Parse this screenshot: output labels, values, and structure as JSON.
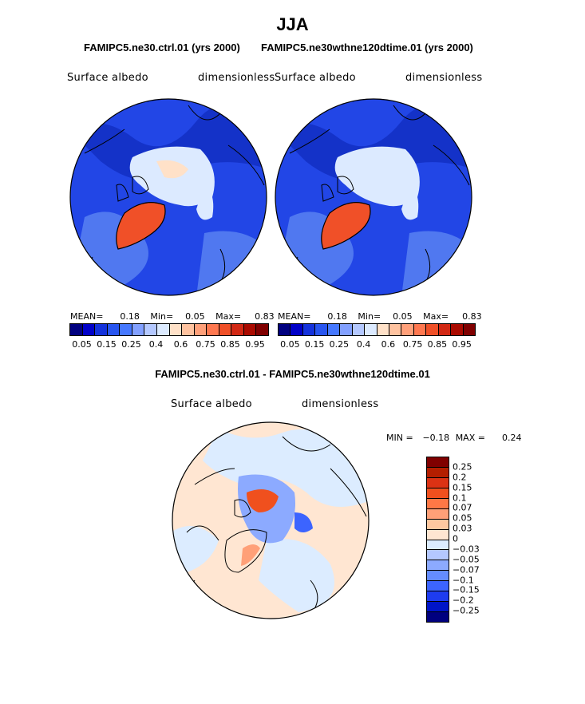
{
  "figure": {
    "title": "JJA",
    "subtitle_left": "FAMIPC5.ne30.ctrl.01 (yrs 2000)",
    "subtitle_right": "FAMIPC5.ne30wthne120dtime.01 (yrs 2000)",
    "diff_title": "FAMIPC5.ne30.ctrl.01 - FAMIPC5.ne30wthne120dtime.01"
  },
  "panels": [
    {
      "variable": "Surface albedo",
      "units": "dimensionless",
      "stats": {
        "mean_label": "MEAN=",
        "mean": "0.18",
        "min_label": "Min=",
        "min": "0.05",
        "max_label": "Max=",
        "max": "0.83"
      }
    },
    {
      "variable": "Surface albedo",
      "units": "dimensionless",
      "stats": {
        "mean_label": "MEAN=",
        "mean": "0.18",
        "min_label": "Min=",
        "min": "0.05",
        "max_label": "Max=",
        "max": "0.83"
      }
    }
  ],
  "diff_panel": {
    "variable": "Surface albedo",
    "units": "dimensionless",
    "stats": {
      "min_label": "MIN =",
      "min": "−0.18",
      "max_label": "MAX =",
      "max": "0.24"
    }
  },
  "colorbar_main": {
    "colors": [
      "#00007f",
      "#0000c8",
      "#1432dc",
      "#2855f0",
      "#4678ff",
      "#82a0ff",
      "#b4c8ff",
      "#dceaff",
      "#ffe1c8",
      "#ffc3a0",
      "#ffa07a",
      "#ff7850",
      "#f05028",
      "#d22814",
      "#aa0a00",
      "#800000"
    ],
    "tick_labels": [
      "0.05",
      "0.15",
      "0.25",
      "0.4",
      "0.6",
      "0.75",
      "0.85",
      "0.95"
    ],
    "tick_boundaries": [
      1,
      3,
      5,
      7,
      9,
      11,
      13,
      15
    ]
  },
  "colorbar_diff": {
    "colors": [
      "#800000",
      "#b41e00",
      "#dc3214",
      "#f0501e",
      "#ff7846",
      "#ffa078",
      "#ffc8a0",
      "#ffe6d2",
      "#dcecff",
      "#b4c8ff",
      "#8caaff",
      "#648cff",
      "#3c64ff",
      "#1e3cf0",
      "#0014c8",
      "#00007f"
    ],
    "tick_labels": [
      "0.25",
      "0.2",
      "0.15",
      "0.1",
      "0.07",
      "0.05",
      "0.03",
      "0",
      "−0.03",
      "−0.05",
      "−0.07",
      "−0.1",
      "−0.15",
      "−0.2",
      "−0.25"
    ]
  },
  "map_palette": {
    "ocean": "#2246e6",
    "ocean_dark": "#1432c8",
    "ocean_light": "#5078f0",
    "ice": "#dceaff",
    "ice_warm": "#ffe1c8",
    "greenland": "#f05028",
    "diff_bg": "#ffe6d2",
    "diff_neg_light": "#dcecff",
    "diff_neg": "#8caaff",
    "diff_neg_strong": "#3c64ff",
    "diff_pos": "#f0501e",
    "diff_pos_light": "#ffa078"
  }
}
